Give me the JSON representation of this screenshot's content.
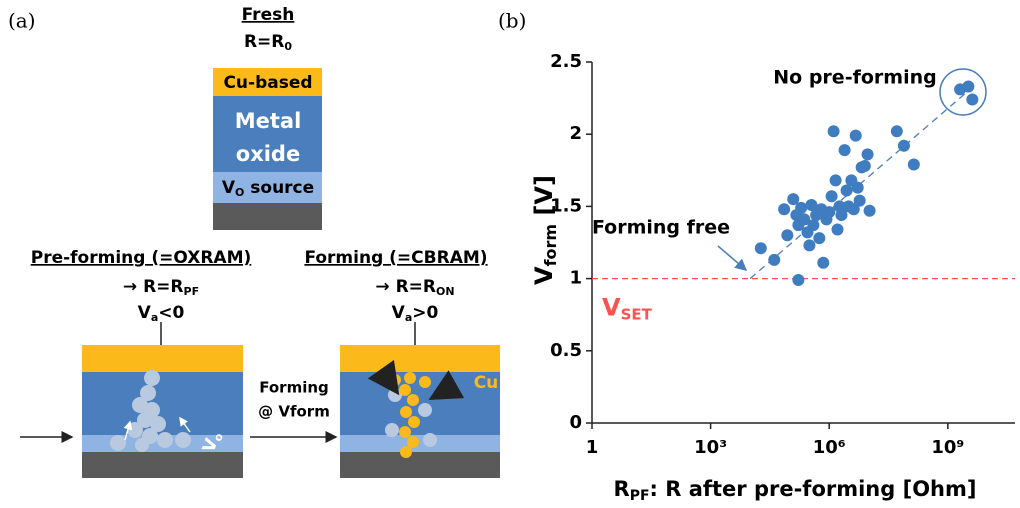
{
  "panel_a": {
    "label": "(a)",
    "fresh": {
      "title": "Fresh",
      "resistance": {
        "text": "R=R",
        "sub": "0"
      },
      "layers": {
        "top": "Cu-based",
        "middle": [
          "Metal",
          "oxide"
        ],
        "bottom": {
          "text": "V",
          "sub": "O",
          "tail": " source"
        }
      }
    },
    "pre_forming": {
      "title": "Pre-forming (=OXRAM)",
      "resistance": {
        "arrow": "→",
        "text": "R=R",
        "sub": "PF"
      },
      "bias": {
        "text": "V",
        "sub": "a",
        "tail": "<0"
      },
      "species": {
        "text": "V",
        "sub": "o"
      }
    },
    "transition": [
      "Forming",
      "@ Vform"
    ],
    "forming": {
      "title": "Forming (=CBRAM)",
      "resistance": {
        "arrow": "→",
        "text": "R=R",
        "sub": "ON"
      },
      "bias": {
        "text": "V",
        "sub": "a",
        "tail": ">0"
      },
      "species": "Cu"
    }
  },
  "chart_data": {
    "type": "scatter",
    "panel_label": "(b)",
    "x_label": {
      "text": "R",
      "sub": "PF",
      "tail": ": R after pre-forming [Ohm]"
    },
    "y_label": {
      "text": "V",
      "sub": "form",
      "tail": " [V]"
    },
    "xscale": "log",
    "xlim": [
      1,
      50000000000
    ],
    "ylim": [
      0,
      2.5
    ],
    "xticks": [
      1,
      {
        "value": 1000,
        "label": "10³"
      },
      {
        "value": 1000000,
        "label": "10⁶"
      },
      {
        "value": 1000000000,
        "label": "10⁹"
      }
    ],
    "yticks": [
      0,
      0.5,
      1,
      1.5,
      2,
      2.5
    ],
    "color": "#3f7cc0",
    "x": [
      18600,
      40700,
      72400,
      87100,
      123000,
      148000,
      166000,
      195000,
      234000,
      282000,
      316000,
      355000,
      166000,
      398000,
      468000,
      562000,
      631000,
      708000,
      851000,
      1000000,
      1150000,
      1290000,
      1450000,
      1620000,
      1820000,
      2040000,
      2450000,
      2750000,
      3090000,
      3630000,
      4170000,
      4680000,
      5250000,
      5890000,
      6610000,
      7940000,
      9330000,
      10500000,
      51300000,
      77600000,
      138000000,
      2040000000,
      3310000000,
      4170000000
    ],
    "values": [
      1.21,
      1.13,
      1.48,
      1.3,
      1.55,
      1.44,
      1.37,
      1.49,
      1.41,
      1.32,
      1.23,
      1.51,
      0.99,
      1.37,
      1.44,
      1.28,
      1.48,
      1.11,
      1.41,
      1.46,
      1.57,
      2.02,
      1.68,
      1.34,
      1.5,
      1.44,
      1.89,
      1.61,
      1.5,
      1.68,
      1.48,
      1.99,
      1.63,
      1.54,
      1.77,
      1.78,
      1.86,
      1.47,
      2.02,
      1.92,
      1.79,
      2.31,
      2.33,
      2.24
    ],
    "hline": {
      "value": 1,
      "label": {
        "text": "V",
        "sub": "SET"
      },
      "color": "#ff5050"
    },
    "trend": {
      "x": [
        10000,
        4000000000
      ],
      "values": [
        1,
        2.32
      ],
      "color": "#4a7ebb"
    },
    "annotations": [
      "No pre-forming",
      "Forming free"
    ]
  }
}
